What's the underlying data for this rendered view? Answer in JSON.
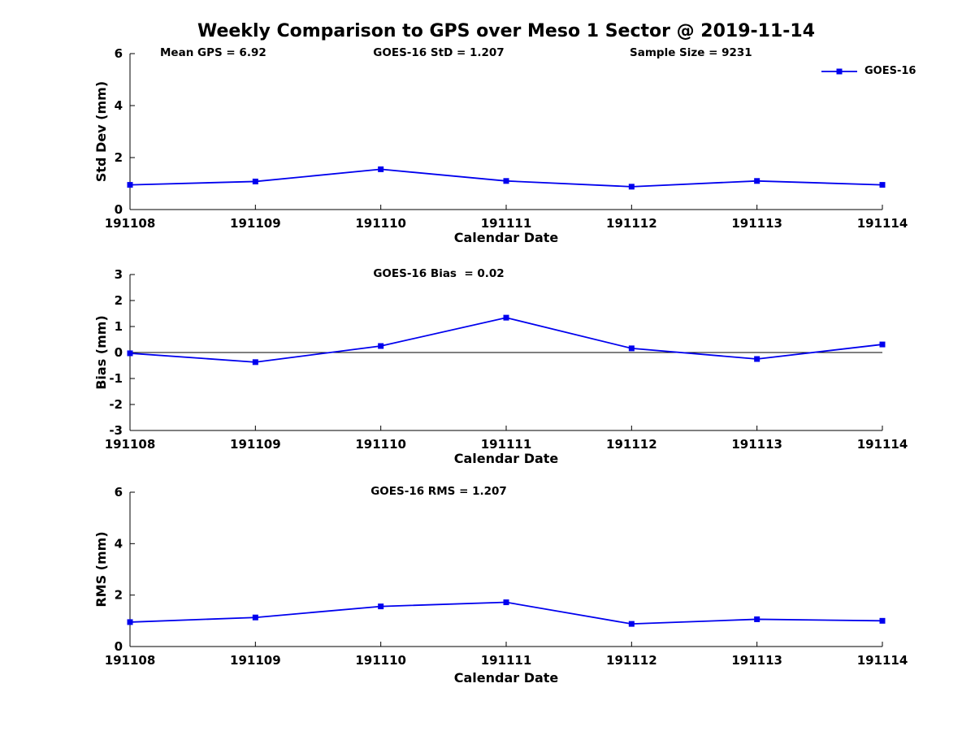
{
  "figure": {
    "title": "Weekly Comparison to GPS over Meso 1 Sector @ 2019-11-14",
    "background": "#ffffff"
  },
  "legend": {
    "label": "GOES-16",
    "line_color": "#0000EE",
    "marker": "square",
    "position": "top-right"
  },
  "chart_data": [
    {
      "type": "line",
      "series_name": "GOES-16",
      "x": [
        "191108",
        "191109",
        "191110",
        "191111",
        "191112",
        "191113",
        "191114"
      ],
      "values": [
        0.95,
        1.08,
        1.55,
        1.1,
        0.88,
        1.1,
        0.95
      ],
      "xlabel": "Calendar Date",
      "ylabel": "Std Dev (mm)",
      "ylim": [
        0,
        6
      ],
      "yticks": [
        0,
        2,
        4,
        6
      ],
      "line_color": "#0000EE",
      "marker": "square",
      "grid": false,
      "zero_line": false,
      "stats": [
        "Mean GPS = 6.92",
        "GOES-16 StD = 1.207",
        "Sample Size = 9231"
      ]
    },
    {
      "type": "line",
      "series_name": "GOES-16",
      "x": [
        "191108",
        "191109",
        "191110",
        "191111",
        "191112",
        "191113",
        "191114"
      ],
      "values": [
        -0.03,
        -0.37,
        0.25,
        1.34,
        0.16,
        -0.25,
        0.31
      ],
      "xlabel": "Calendar Date",
      "ylabel": "Bias (mm)",
      "ylim": [
        -3,
        3
      ],
      "yticks": [
        -3,
        -2,
        -1,
        0,
        1,
        2,
        3
      ],
      "line_color": "#0000EE",
      "marker": "square",
      "grid": false,
      "zero_line": true,
      "stats": [
        "GOES-16 Bias  = 0.02"
      ]
    },
    {
      "type": "line",
      "series_name": "GOES-16",
      "x": [
        "191108",
        "191109",
        "191110",
        "191111",
        "191112",
        "191113",
        "191114"
      ],
      "values": [
        0.95,
        1.13,
        1.56,
        1.72,
        0.88,
        1.06,
        1.0
      ],
      "xlabel": "Calendar Date",
      "ylabel": "RMS (mm)",
      "ylim": [
        0,
        6
      ],
      "yticks": [
        0,
        2,
        4,
        6
      ],
      "line_color": "#0000EE",
      "marker": "square",
      "grid": false,
      "zero_line": false,
      "stats": [
        "GOES-16 RMS = 1.207"
      ]
    }
  ]
}
